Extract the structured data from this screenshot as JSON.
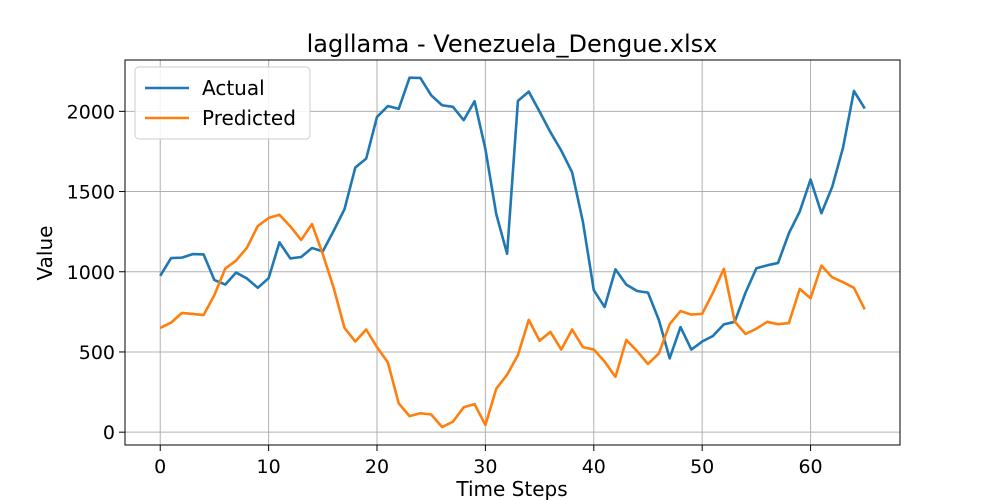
{
  "chart_data": {
    "type": "line",
    "title": "lagllama - Venezuela_Dengue.xlsx",
    "xlabel": "Time Steps",
    "ylabel": "Value",
    "xlim": [
      -3.25,
      68.25
    ],
    "ylim": [
      -80,
      2320
    ],
    "xticks": [
      0,
      10,
      20,
      30,
      40,
      50,
      60
    ],
    "yticks": [
      0,
      500,
      1000,
      1500,
      2000
    ],
    "grid": true,
    "legend_position": "top-left",
    "series": [
      {
        "name": "Actual",
        "color": "#1f77b4",
        "values": [
          975,
          1085,
          1088,
          1110,
          1108,
          948,
          920,
          995,
          958,
          900,
          960,
          1183,
          1083,
          1092,
          1148,
          1127,
          1255,
          1390,
          1650,
          1705,
          1965,
          2033,
          2015,
          2210,
          2208,
          2100,
          2038,
          2028,
          1945,
          2063,
          1765,
          1360,
          1112,
          2065,
          2123,
          1998,
          1870,
          1755,
          1620,
          1310,
          885,
          780,
          1015,
          920,
          880,
          870,
          700,
          460,
          655,
          515,
          565,
          600,
          672,
          688,
          870,
          1022,
          1040,
          1055,
          1240,
          1375,
          1575,
          1365,
          1530,
          1775,
          2127,
          2017
        ]
      },
      {
        "name": "Predicted",
        "color": "#ff7f0e",
        "values": [
          650,
          683,
          743,
          737,
          730,
          855,
          1020,
          1070,
          1150,
          1285,
          1335,
          1355,
          1283,
          1198,
          1297,
          1110,
          900,
          650,
          565,
          640,
          530,
          435,
          180,
          100,
          118,
          110,
          32,
          65,
          155,
          175,
          45,
          270,
          358,
          480,
          700,
          570,
          625,
          515,
          640,
          530,
          515,
          440,
          345,
          575,
          505,
          425,
          490,
          673,
          755,
          733,
          738,
          870,
          1018,
          690,
          612,
          645,
          688,
          673,
          680,
          893,
          835,
          1038,
          965,
          935,
          900,
          765
        ]
      }
    ]
  }
}
